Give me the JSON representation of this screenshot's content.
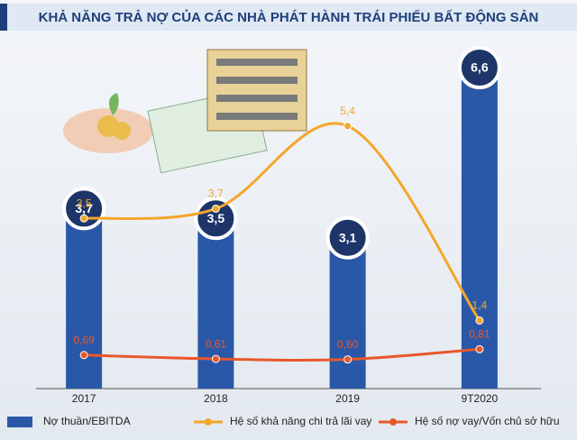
{
  "chart_data": {
    "type": "bar-line",
    "title": "KHẢ NĂNG TRẢ NỢ CỦA CÁC NHÀ PHÁT HÀNH TRÁI PHIẾU BẤT ĐỘNG SẢN",
    "categories": [
      "2017",
      "2018",
      "2019",
      "9T2020"
    ],
    "series": [
      {
        "name": "Nợ thuần/EBITDA",
        "type": "bar",
        "color": "#2a58a8",
        "values": [
          3.7,
          3.5,
          3.1,
          6.6
        ],
        "value_labels": [
          "3,7",
          "3,5",
          "3,1",
          "6,6"
        ]
      },
      {
        "name": "Hệ số khả năng chi trả lãi vay",
        "type": "line",
        "color": "#f4a62a",
        "values": [
          3.5,
          3.7,
          5.4,
          1.4
        ],
        "value_labels": [
          "3,5",
          "3,7",
          "5,4",
          "1,4"
        ]
      },
      {
        "name": "Hệ số nợ vay/Vốn chủ sở hữu",
        "type": "line",
        "color": "#e9582b",
        "values": [
          0.69,
          0.61,
          0.6,
          0.81
        ],
        "value_labels": [
          "0,69",
          "0,61",
          "0,60",
          "0,81"
        ]
      }
    ]
  }
}
